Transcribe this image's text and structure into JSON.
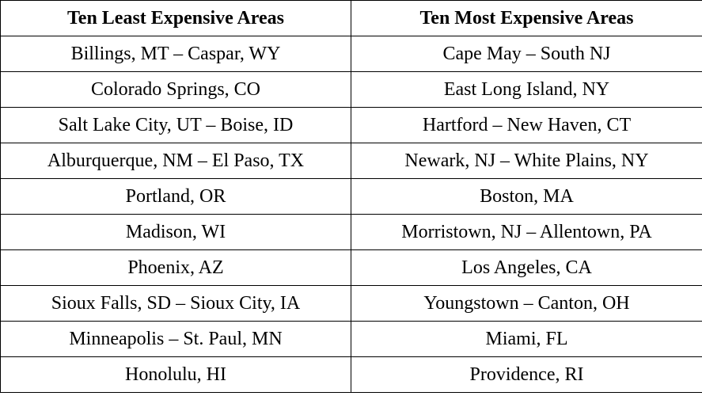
{
  "table": {
    "header": [
      "Ten Least Expensive Areas",
      "Ten Most Expensive Areas"
    ],
    "rows": [
      [
        "Billings, MT – Caspar, WY",
        "Cape May – South NJ"
      ],
      [
        "Colorado Springs, CO",
        "East Long Island, NY"
      ],
      [
        "Salt Lake City, UT – Boise, ID",
        "Hartford – New Haven, CT"
      ],
      [
        "Alburquerque, NM – El Paso, TX",
        "Newark, NJ – White Plains, NY"
      ],
      [
        "Portland, OR",
        "Boston, MA"
      ],
      [
        "Madison, WI",
        "Morristown, NJ – Allentown, PA"
      ],
      [
        "Phoenix, AZ",
        "Los Angeles, CA"
      ],
      [
        "Sioux Falls, SD – Sioux City, IA",
        "Youngstown – Canton, OH"
      ],
      [
        "Minneapolis – St. Paul, MN",
        "Miami, FL"
      ],
      [
        "Honolulu, HI",
        "Providence, RI"
      ]
    ]
  }
}
